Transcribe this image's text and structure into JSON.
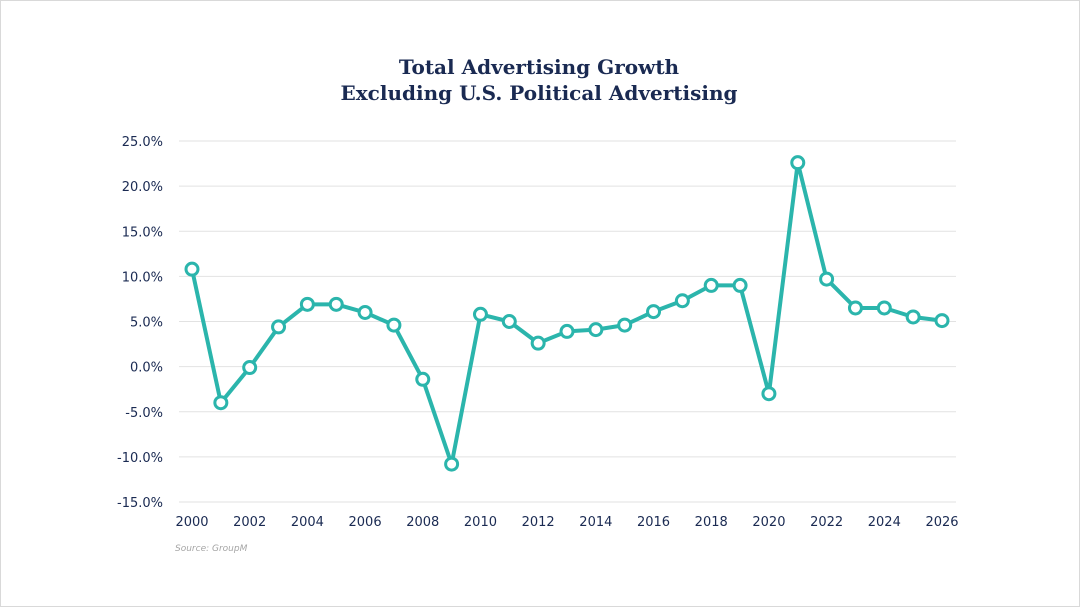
{
  "chart_data": {
    "type": "line",
    "title": "Total Advertising Growth",
    "subtitle": "Excluding U.S. Political Advertising",
    "xlabel": "",
    "ylabel": "",
    "source": "Source: GroupM",
    "x": [
      2000,
      2001,
      2002,
      2003,
      2004,
      2005,
      2006,
      2007,
      2008,
      2009,
      2010,
      2011,
      2012,
      2013,
      2014,
      2015,
      2016,
      2017,
      2018,
      2019,
      2020,
      2021,
      2022,
      2023,
      2024,
      2025,
      2026
    ],
    "series": [
      {
        "values": [
          10.8,
          -4.0,
          -0.1,
          4.4,
          6.9,
          6.9,
          6.0,
          4.6,
          -1.4,
          -10.8,
          5.8,
          5.0,
          2.6,
          3.9,
          4.1,
          4.6,
          6.1,
          7.3,
          9.0,
          9.0,
          -3.0,
          22.6,
          9.7,
          6.5,
          6.5,
          5.5,
          5.1
        ],
        "color": "#2bb5ac"
      }
    ],
    "ylim": [
      -15,
      25
    ],
    "yticks": [
      25,
      20,
      15,
      10,
      5,
      0,
      -5,
      -10,
      -15
    ],
    "ytick_labels": [
      "25.0%",
      "20.0%",
      "15.0%",
      "10.0%",
      "5.0%",
      "0.0%",
      "-5.0%",
      "-10.0%",
      "-15.0%"
    ],
    "xticks": [
      2000,
      2002,
      2004,
      2006,
      2008,
      2010,
      2012,
      2014,
      2016,
      2018,
      2020,
      2022,
      2024,
      2026
    ],
    "xtick_labels": [
      "2000",
      "2002",
      "2004",
      "2006",
      "2008",
      "2010",
      "2012",
      "2014",
      "2016",
      "2018",
      "2020",
      "2022",
      "2024",
      "2026"
    ],
    "grid": true,
    "legend": "none"
  }
}
